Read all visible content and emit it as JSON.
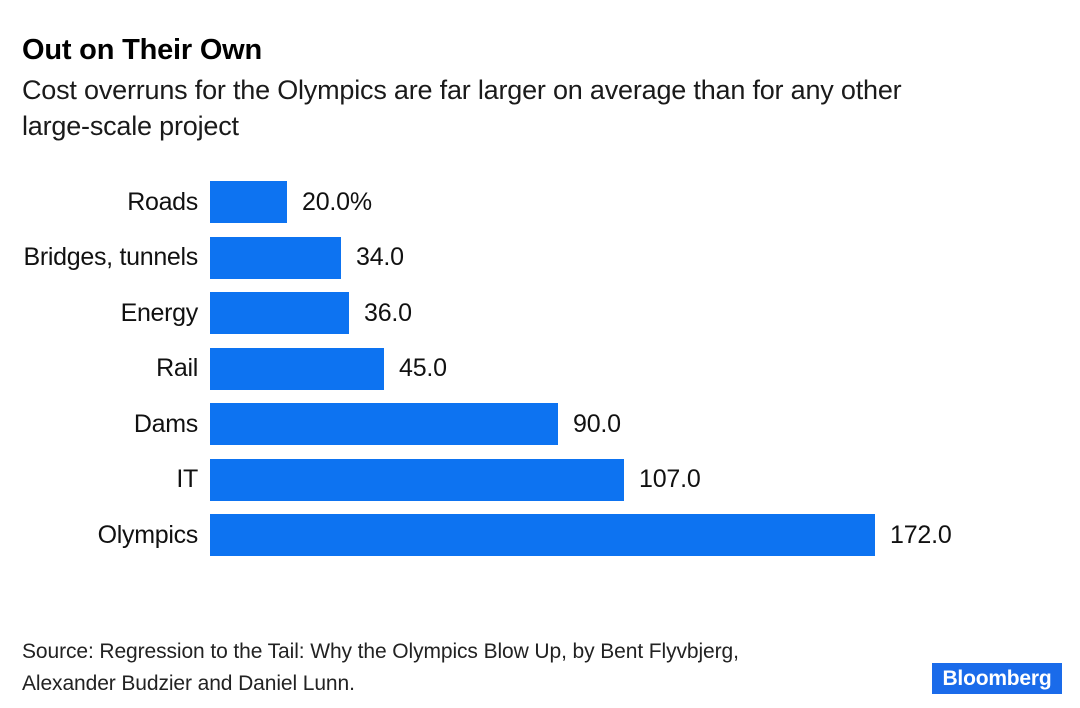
{
  "header": {
    "title": "Out on Their Own",
    "subtitle": "Cost overruns for the Olympics are far larger on average than for any other\nlarge-scale project"
  },
  "chart_data": {
    "type": "bar",
    "orientation": "horizontal",
    "title": "Out on Their Own",
    "subtitle": "Cost overruns for the Olympics are far larger on average than for any other large-scale project",
    "categories": [
      "Roads",
      "Bridges, tunnels",
      "Energy",
      "Rail",
      "Dams",
      "IT",
      "Olympics"
    ],
    "values": [
      20.0,
      34.0,
      36.0,
      45.0,
      90.0,
      107.0,
      172.0
    ],
    "value_labels": [
      "20.0%",
      "34.0",
      "36.0",
      "45.0",
      "90.0",
      "107.0",
      "172.0"
    ],
    "unit": "percent (cost overrun)",
    "xlim": [
      0,
      172
    ],
    "bar_color": "#0d73f1",
    "grid": false,
    "legend": false
  },
  "footer": {
    "source": "Source: Regression to the Tail: Why the Olympics Blow Up, by Bent Flyvbjerg,\nAlexander Budzier and Daniel Lunn.",
    "brand_label": "Bloomberg",
    "brand_bg_color": "#1a6bea"
  }
}
